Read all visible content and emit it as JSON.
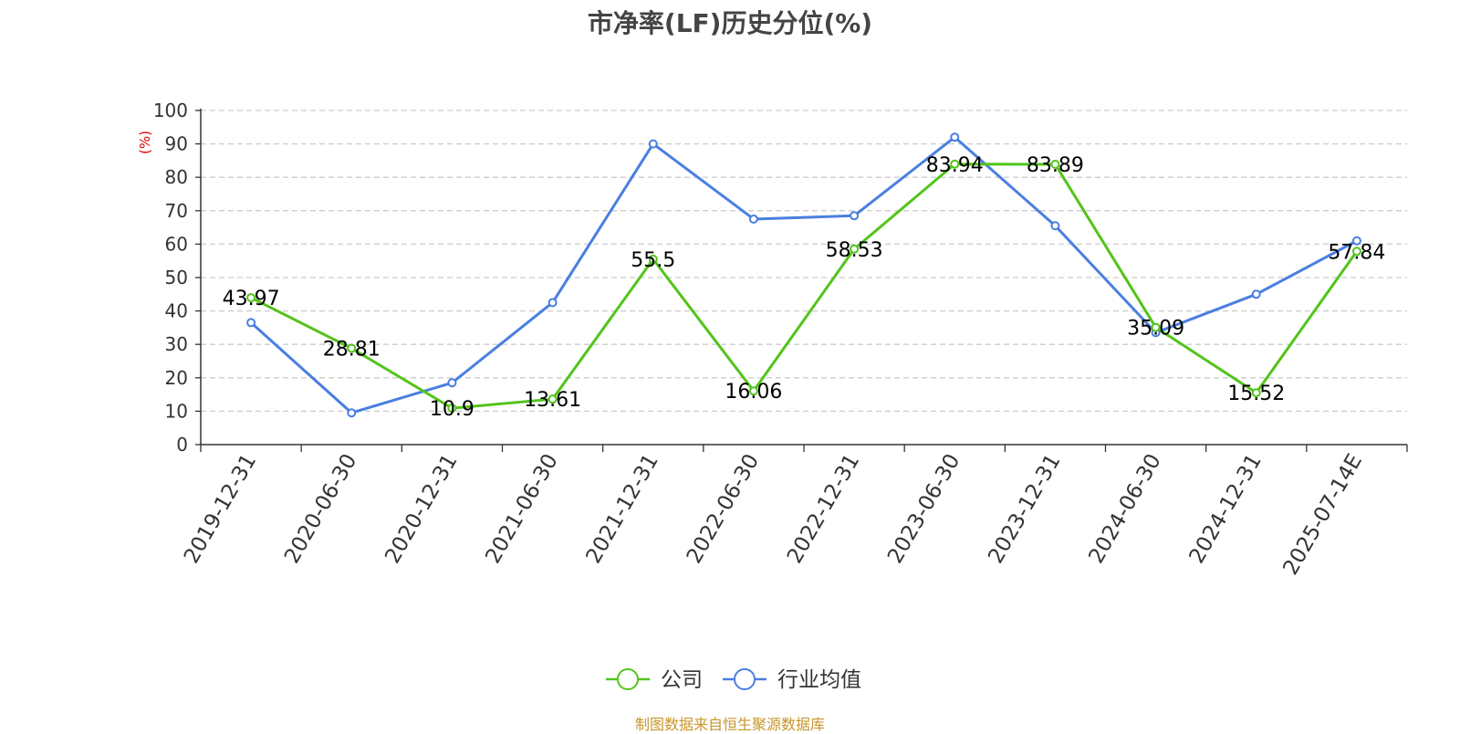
{
  "chart_data": {
    "type": "line",
    "title": "市净率(LF)历史分位(%)",
    "ylabel": "(%)",
    "ylim": [
      0,
      100
    ],
    "yticks": [
      0,
      10,
      20,
      30,
      40,
      50,
      60,
      70,
      80,
      90,
      100
    ],
    "grid": true,
    "legend_position": "bottom",
    "categories": [
      "2019-12-31",
      "2020-06-30",
      "2020-12-31",
      "2021-06-30",
      "2021-12-31",
      "2022-06-30",
      "2022-12-31",
      "2023-06-30",
      "2023-12-31",
      "2024-06-30",
      "2024-12-31",
      "2025-07-14E"
    ],
    "series": [
      {
        "name": "公司",
        "color": "#52c41a",
        "values": [
          43.97,
          28.81,
          10.9,
          13.61,
          55.5,
          16.06,
          58.53,
          83.94,
          83.89,
          35.09,
          15.52,
          57.84
        ],
        "labels": [
          "43.97",
          "28.81",
          "10.9",
          "13.61",
          "55.5",
          "16.06",
          "58.53",
          "83.94",
          "83.89",
          "35.09",
          "15.52",
          "57.84"
        ]
      },
      {
        "name": "行业均值",
        "color": "#4a7fe0",
        "values": [
          36.5,
          9.5,
          18.5,
          42.5,
          90,
          67.5,
          68.5,
          92,
          65.5,
          33.5,
          45,
          61
        ]
      }
    ]
  },
  "source_text": "制图数据来自恒生聚源数据库"
}
